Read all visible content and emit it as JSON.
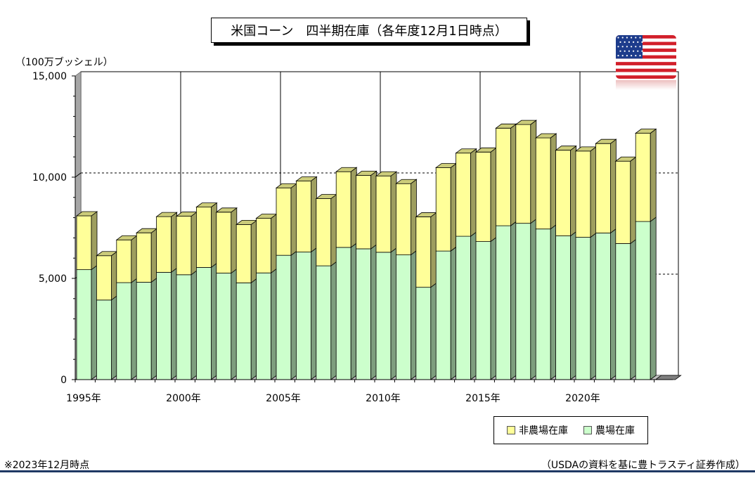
{
  "title": "米国コーン　四半期在庫（各年度12月1日時点）",
  "unit_label": "（100万ブッシェル）",
  "footnote_left": "※2023年12月時点",
  "footnote_right": "（USDAの資料を基に豊トラスティ証券作成）",
  "flag_icon": "us-flag-icon",
  "colors": {
    "on_farm": "#ccffcc",
    "off_farm": "#ffff99",
    "grid": "#000000",
    "wall": "#c0c0c0",
    "footer_rule": "#1f3864"
  },
  "chart_data": {
    "type": "bar",
    "stacked": true,
    "title": "米国コーン　四半期在庫（各年度12月1日時点）",
    "xlabel": "",
    "ylabel": "（100万ブッシェル）",
    "ylim": [
      0,
      15000
    ],
    "yticks": [
      0,
      5000,
      10000,
      15000
    ],
    "ytick_labels": [
      "0",
      "5,000",
      "10,000",
      "15,000"
    ],
    "categories": [
      "1995",
      "1996",
      "1997",
      "1998",
      "1999",
      "2000",
      "2001",
      "2002",
      "2003",
      "2004",
      "2005",
      "2006",
      "2007",
      "2008",
      "2009",
      "2010",
      "2011",
      "2012",
      "2013",
      "2014",
      "2015",
      "2016",
      "2017",
      "2018",
      "2019",
      "2020",
      "2021",
      "2022",
      "2023"
    ],
    "x_tick_labels": [
      {
        "index": 0,
        "label": "1995年"
      },
      {
        "index": 5,
        "label": "2000年"
      },
      {
        "index": 10,
        "label": "2005年"
      },
      {
        "index": 15,
        "label": "2010年"
      },
      {
        "index": 20,
        "label": "2015年"
      },
      {
        "index": 25,
        "label": "2020年"
      }
    ],
    "series": [
      {
        "name": "農場在庫",
        "color": "#ccffcc",
        "values": [
          5430,
          3930,
          4790,
          4810,
          5300,
          5180,
          5540,
          5260,
          4780,
          5270,
          6140,
          6300,
          5620,
          6530,
          6460,
          6290,
          6160,
          4560,
          6350,
          7080,
          6820,
          7600,
          7720,
          7440,
          7100,
          7030,
          7240,
          6720,
          7810
        ]
      },
      {
        "name": "非農場在庫",
        "color": "#ffff99",
        "values": [
          2660,
          2190,
          2110,
          2440,
          2750,
          2890,
          2980,
          3010,
          2880,
          2700,
          3330,
          3510,
          3320,
          3740,
          3630,
          3770,
          3520,
          3480,
          4120,
          4110,
          4420,
          4820,
          4880,
          4500,
          4230,
          4260,
          4420,
          4070,
          4360
        ]
      }
    ],
    "legend_position": "bottom-right",
    "grid": {
      "horizontal_dashed_at": [
        5000,
        10000
      ],
      "vertical_solid_every": 5
    }
  }
}
